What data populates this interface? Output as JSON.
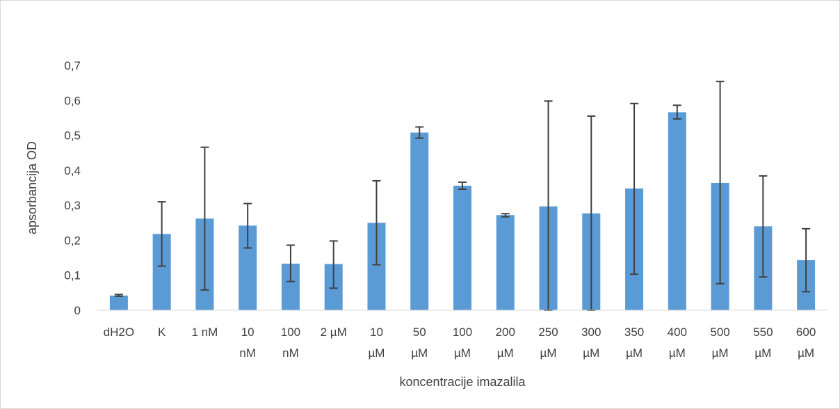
{
  "chart_data": {
    "type": "bar",
    "title": "",
    "xlabel": "koncentracije imazalila",
    "ylabel": "apsorbancija  OD",
    "ylim": [
      0,
      0.7
    ],
    "yticks": [
      "0",
      "0,1",
      "0,2",
      "0,3",
      "0,4",
      "0,5",
      "0,6",
      "0,7"
    ],
    "grid": false,
    "legend": "none",
    "bar_color": "#5b9bd5",
    "error_bar_color": "#404040",
    "categories": [
      [
        "dH2O"
      ],
      [
        "K"
      ],
      [
        "1 nM"
      ],
      [
        "10",
        "nM"
      ],
      [
        "100",
        "nM"
      ],
      [
        "2 µM"
      ],
      [
        "10",
        "µM"
      ],
      [
        "50",
        "µM"
      ],
      [
        "100",
        "µM"
      ],
      [
        "200",
        "µM"
      ],
      [
        "250",
        "µM"
      ],
      [
        "300",
        "µM"
      ],
      [
        "350",
        "µM"
      ],
      [
        "400",
        "µM"
      ],
      [
        "500",
        "µM"
      ],
      [
        "550",
        "µM"
      ],
      [
        "600",
        "µM"
      ]
    ],
    "values": [
      0.042,
      0.218,
      0.262,
      0.242,
      0.133,
      0.132,
      0.25,
      0.508,
      0.356,
      0.272,
      0.297,
      0.277,
      0.348,
      0.566,
      0.364,
      0.24,
      0.143
    ],
    "error_low": [
      0.04,
      0.126,
      0.058,
      0.178,
      0.082,
      0.063,
      0.13,
      0.492,
      0.346,
      0.267,
      0.0,
      0.0,
      0.103,
      0.547,
      0.076,
      0.095,
      0.053
    ],
    "error_high": [
      0.045,
      0.31,
      0.466,
      0.305,
      0.186,
      0.198,
      0.37,
      0.524,
      0.366,
      0.276,
      0.598,
      0.555,
      0.591,
      0.586,
      0.654,
      0.384,
      0.233
    ]
  }
}
